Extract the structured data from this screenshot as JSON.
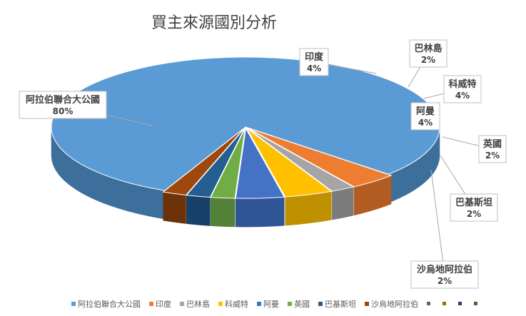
{
  "chart_data": {
    "type": "pie",
    "style": "3d",
    "title": "買主來源國別分析",
    "legend_position": "bottom",
    "slices": [
      {
        "name": "阿拉伯聯合大公國",
        "value": 80,
        "label": "80%",
        "color": "#5b9bd5",
        "side": "#3d6f9c",
        "exploded": true
      },
      {
        "name": "印度",
        "value": 4,
        "label": "4%",
        "color": "#ed7d31",
        "side": "#b35c22"
      },
      {
        "name": "巴林島",
        "value": 2,
        "label": "2%",
        "color": "#a5a5a5",
        "side": "#7b7b7b"
      },
      {
        "name": "科威特",
        "value": 4,
        "label": "4%",
        "color": "#ffc000",
        "side": "#bf9000"
      },
      {
        "name": "阿曼",
        "value": 4,
        "label": "4%",
        "color": "#4472c4",
        "side": "#2f5597"
      },
      {
        "name": "英國",
        "value": 2,
        "label": "2%",
        "color": "#70ad47",
        "side": "#538135"
      },
      {
        "name": "巴基斯坦",
        "value": 2,
        "label": "2%",
        "color": "#255e91",
        "side": "#17406a"
      },
      {
        "name": "沙烏地阿拉伯",
        "value": 2,
        "label": "2%",
        "color": "#9e480e",
        "side": "#6e3209"
      }
    ],
    "extra_legend_markers": [
      "#636363",
      "#997300",
      "#264478",
      "#43682b"
    ]
  }
}
